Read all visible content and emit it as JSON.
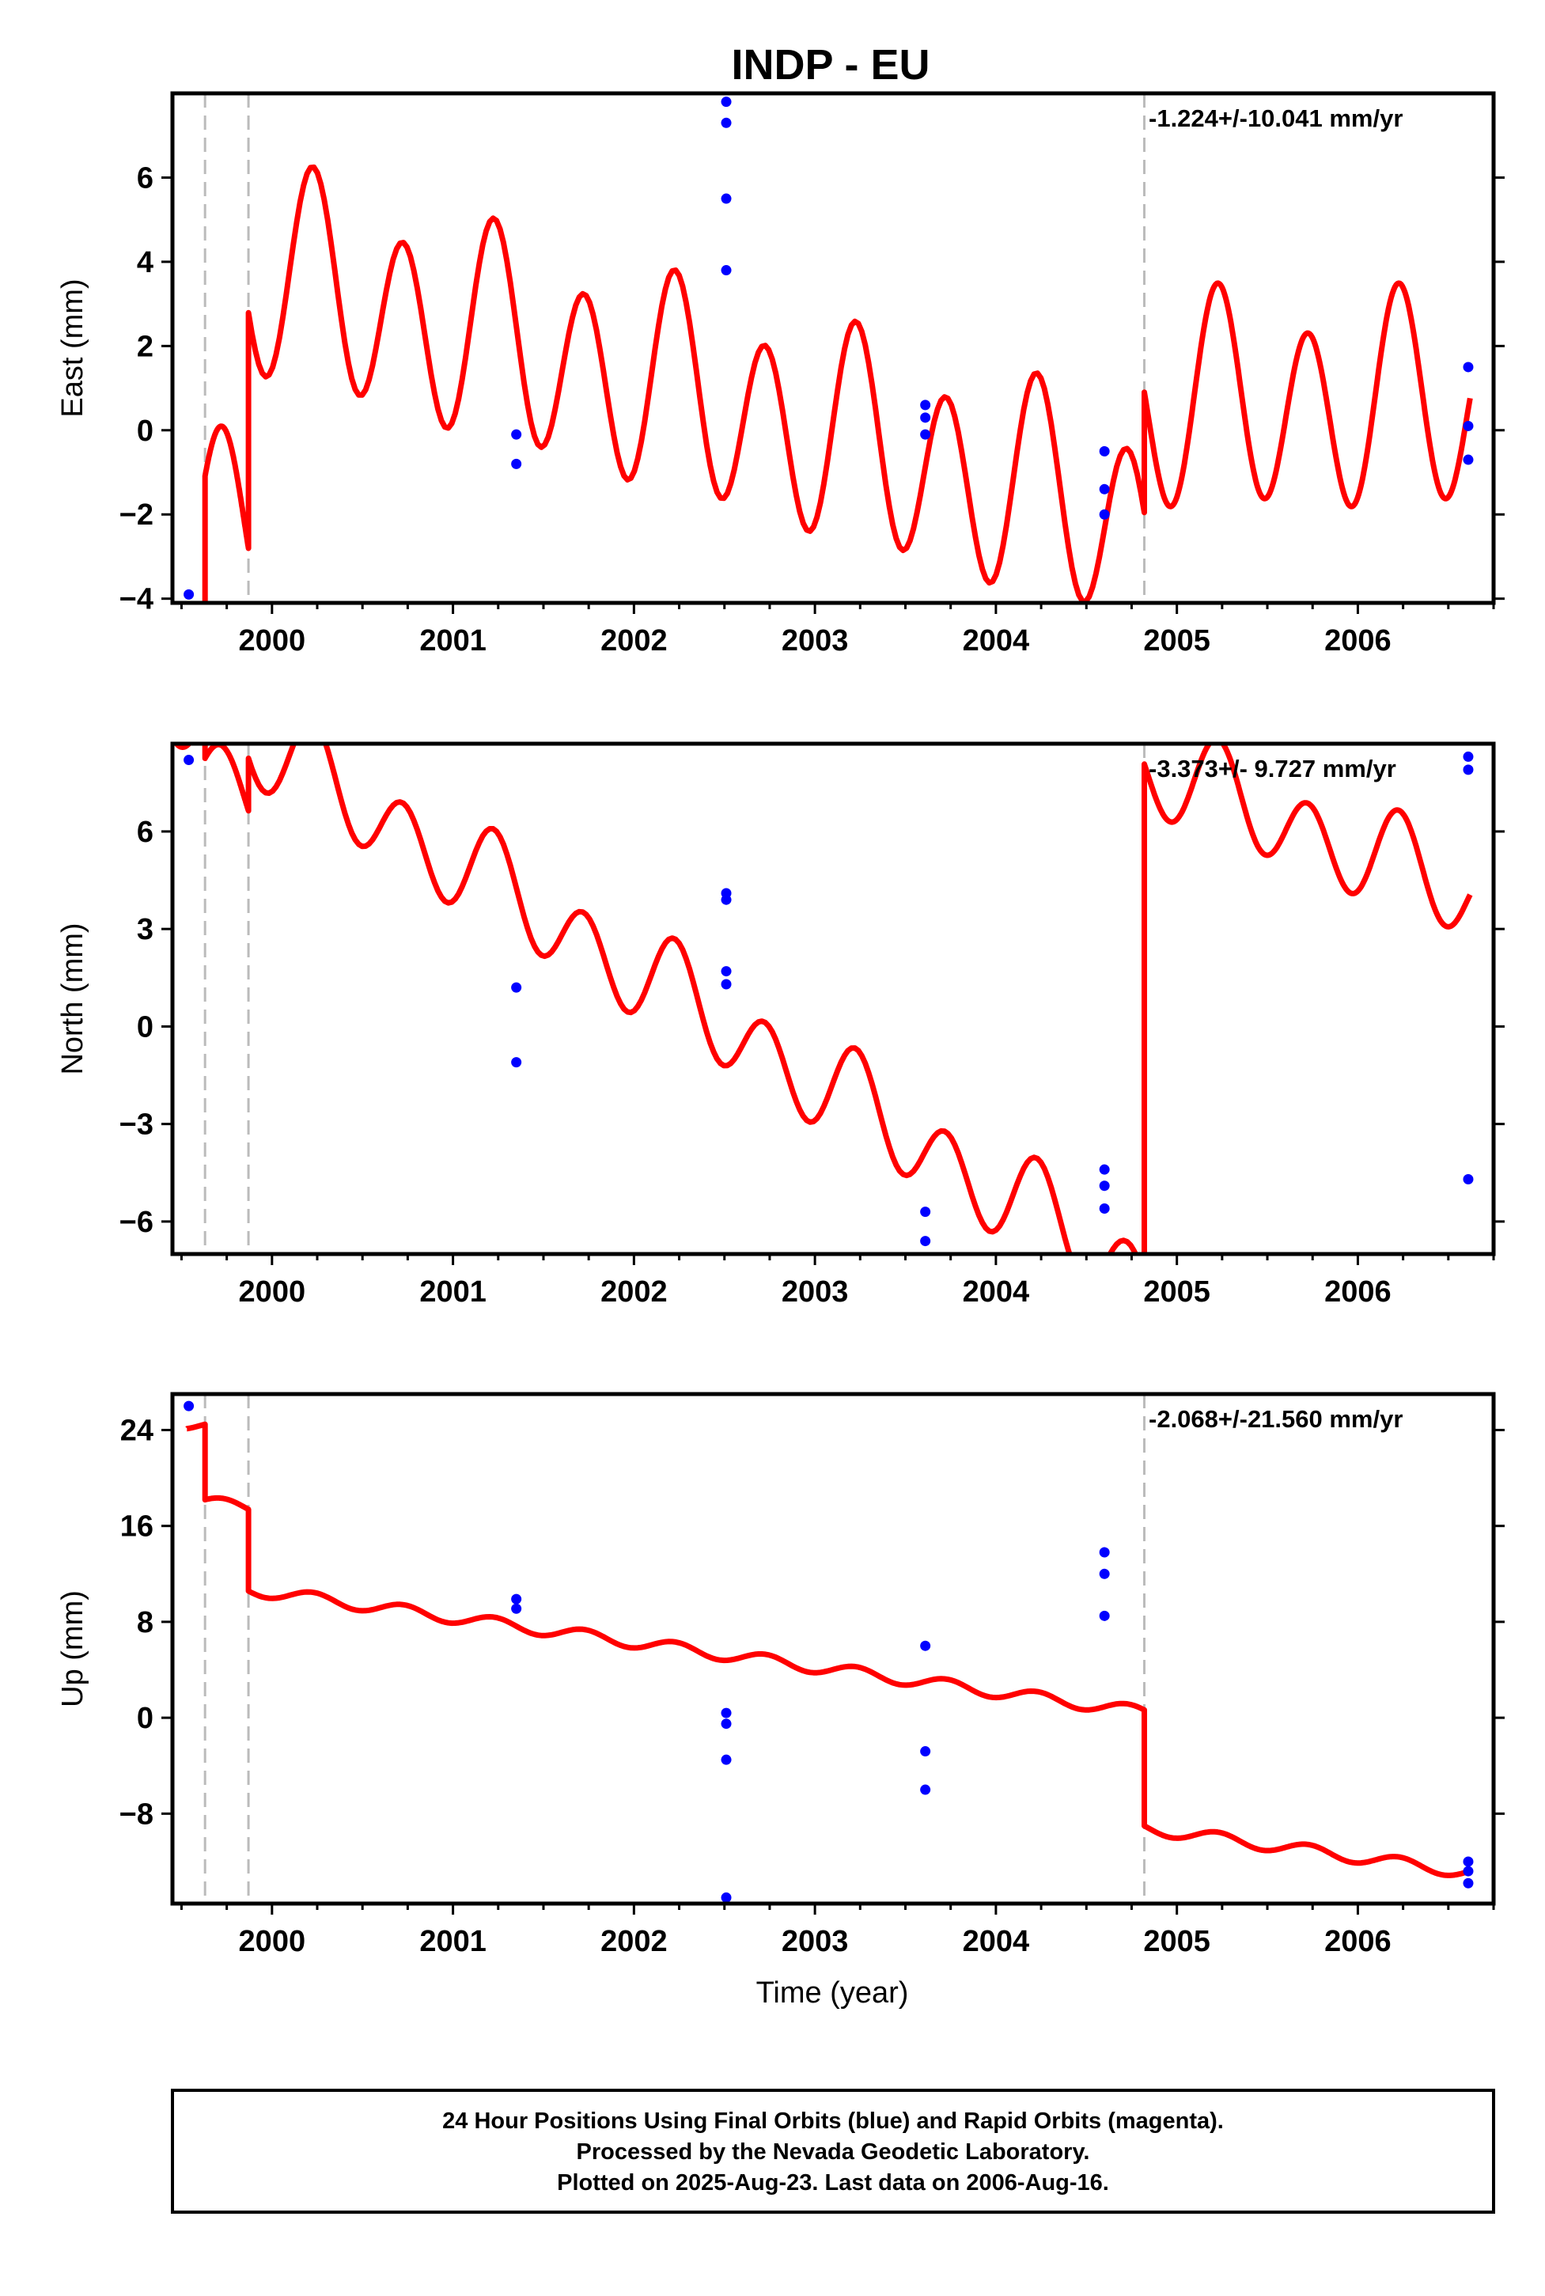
{
  "chart_data": {
    "type": "scatter",
    "title": "INDP - EU",
    "xlabel": "Time (year)",
    "x_ticks": [
      2000,
      2001,
      2002,
      2003,
      2004,
      2005,
      2006
    ],
    "xlim": [
      1999.45,
      2006.75
    ],
    "colors": {
      "final_orbits": "#0000ff",
      "model_fit": "#ff0000",
      "event_lines": "#bbbbbb"
    },
    "event_lines": [
      1999.63,
      1999.87,
      2004.82
    ],
    "footer": [
      "24 Hour Positions Using Final Orbits (blue) and Rapid Orbits (magenta).",
      "Processed by the Nevada Geodetic Laboratory.",
      "Plotted on 2025-Aug-23. Last data on 2006-Aug-16."
    ],
    "panels": [
      {
        "name": "east",
        "ylabel": "East (mm)",
        "rate": "-1.224+/-10.041 mm/yr",
        "ylim": [
          -4.1,
          8.0
        ],
        "y_ticks": [
          -4,
          -2,
          0,
          2,
          4,
          6
        ],
        "y_tick_labels": [
          "−4",
          "−2",
          "0",
          "2",
          "4",
          "6"
        ],
        "points": [
          [
            1999.54,
            -3.9
          ],
          [
            2001.35,
            -0.1
          ],
          [
            2001.35,
            -0.8
          ],
          [
            2002.51,
            7.8
          ],
          [
            2002.51,
            7.3
          ],
          [
            2002.51,
            5.5
          ],
          [
            2002.51,
            3.8
          ],
          [
            2003.61,
            0.6
          ],
          [
            2003.61,
            0.3
          ],
          [
            2003.61,
            -0.1
          ],
          [
            2004.6,
            -0.5
          ],
          [
            2004.6,
            -1.4
          ],
          [
            2004.6,
            -2.0
          ],
          [
            2006.61,
            1.5
          ],
          [
            2006.61,
            0.1
          ],
          [
            2006.61,
            -0.7
          ]
        ],
        "model": {
          "segments": [
            {
              "start": 1999.45,
              "end": 1999.63,
              "level": -4.8,
              "slope": -1.224,
              "amp": 2.3,
              "phase": 0.6
            },
            {
              "start": 1999.63,
              "end": 1999.87,
              "level": -1.5,
              "slope": -1.224,
              "amp": 2.3,
              "phase": 0.6
            },
            {
              "start": 1999.87,
              "end": 2004.82,
              "level": 3.8,
              "slope": -1.224,
              "amp": 2.3,
              "phase": 0.6
            },
            {
              "start": 2004.82,
              "end": 2006.62,
              "level": 0.6,
              "slope": 0.0,
              "amp": 2.3,
              "phase": 0.6
            }
          ],
          "annual": 0.6,
          "annual_phase": 0.0
        }
      },
      {
        "name": "north",
        "ylabel": "North (mm)",
        "rate": "-3.373+/- 9.727 mm/yr",
        "ylim": [
          -7.0,
          8.7
        ],
        "y_ticks": [
          -6,
          -3,
          0,
          3,
          6
        ],
        "y_tick_labels": [
          "−6",
          "−3",
          "0",
          "3",
          "6"
        ],
        "points": [
          [
            1999.54,
            8.2
          ],
          [
            2001.35,
            1.2
          ],
          [
            2001.35,
            -1.1
          ],
          [
            2002.51,
            4.1
          ],
          [
            2002.51,
            3.9
          ],
          [
            2002.51,
            1.7
          ],
          [
            2002.51,
            1.3
          ],
          [
            2003.61,
            -5.7
          ],
          [
            2003.61,
            -6.6
          ],
          [
            2004.6,
            -4.4
          ],
          [
            2004.6,
            -4.9
          ],
          [
            2004.6,
            -5.6
          ],
          [
            2006.61,
            8.3
          ],
          [
            2006.61,
            7.9
          ],
          [
            2006.61,
            -4.7
          ]
        ],
        "model": {
          "segments": [
            {
              "start": 1999.45,
              "end": 1999.63,
              "level": 10.0,
              "slope": -3.373,
              "amp": 1.3,
              "phase": 0.6
            },
            {
              "start": 1999.63,
              "end": 1999.87,
              "level": 8.1,
              "slope": -3.373,
              "amp": 1.3,
              "phase": 0.6
            },
            {
              "start": 1999.87,
              "end": 2004.82,
              "level": 8.9,
              "slope": -3.373,
              "amp": 1.3,
              "phase": 0.6
            },
            {
              "start": 2004.82,
              "end": 2006.62,
              "level": 8.0,
              "slope": -2.2,
              "amp": 1.3,
              "phase": 0.6
            }
          ],
          "annual": 0.45,
          "annual_phase": 0.0
        }
      },
      {
        "name": "up",
        "ylabel": "Up (mm)",
        "rate": "-2.068+/-21.560 mm/yr",
        "ylim": [
          -15.5,
          27.0
        ],
        "y_ticks": [
          -8,
          0,
          8,
          16,
          24
        ],
        "y_tick_labels": [
          "−8",
          "0",
          "8",
          "16",
          "24"
        ],
        "points": [
          [
            1999.54,
            26.0
          ],
          [
            2001.35,
            9.9
          ],
          [
            2001.35,
            9.1
          ],
          [
            2002.51,
            0.4
          ],
          [
            2002.51,
            -0.5
          ],
          [
            2002.51,
            -3.5
          ],
          [
            2002.51,
            -15.0
          ],
          [
            2003.61,
            6.0
          ],
          [
            2003.61,
            -2.8
          ],
          [
            2003.61,
            -6.0
          ],
          [
            2004.6,
            13.8
          ],
          [
            2004.6,
            12.0
          ],
          [
            2004.6,
            8.5
          ],
          [
            2006.61,
            -12.0
          ],
          [
            2006.61,
            -12.8
          ],
          [
            2006.61,
            -13.8
          ]
        ],
        "model": {
          "segments": [
            {
              "start": 1999.53,
              "end": 1999.63,
              "level": 24.5,
              "slope": -2.068,
              "amp": 0.5,
              "phase": 0.6
            },
            {
              "start": 1999.63,
              "end": 1999.87,
              "level": 18.0,
              "slope": -2.068,
              "amp": 0.5,
              "phase": 0.6
            },
            {
              "start": 1999.87,
              "end": 2004.82,
              "level": 10.7,
              "slope": -2.068,
              "amp": 0.5,
              "phase": 0.6
            },
            {
              "start": 2004.82,
              "end": 2006.62,
              "level": -9.2,
              "slope": -2.068,
              "amp": 0.5,
              "phase": 0.6
            }
          ],
          "annual": 0.0,
          "annual_phase": 0.0
        }
      }
    ]
  }
}
